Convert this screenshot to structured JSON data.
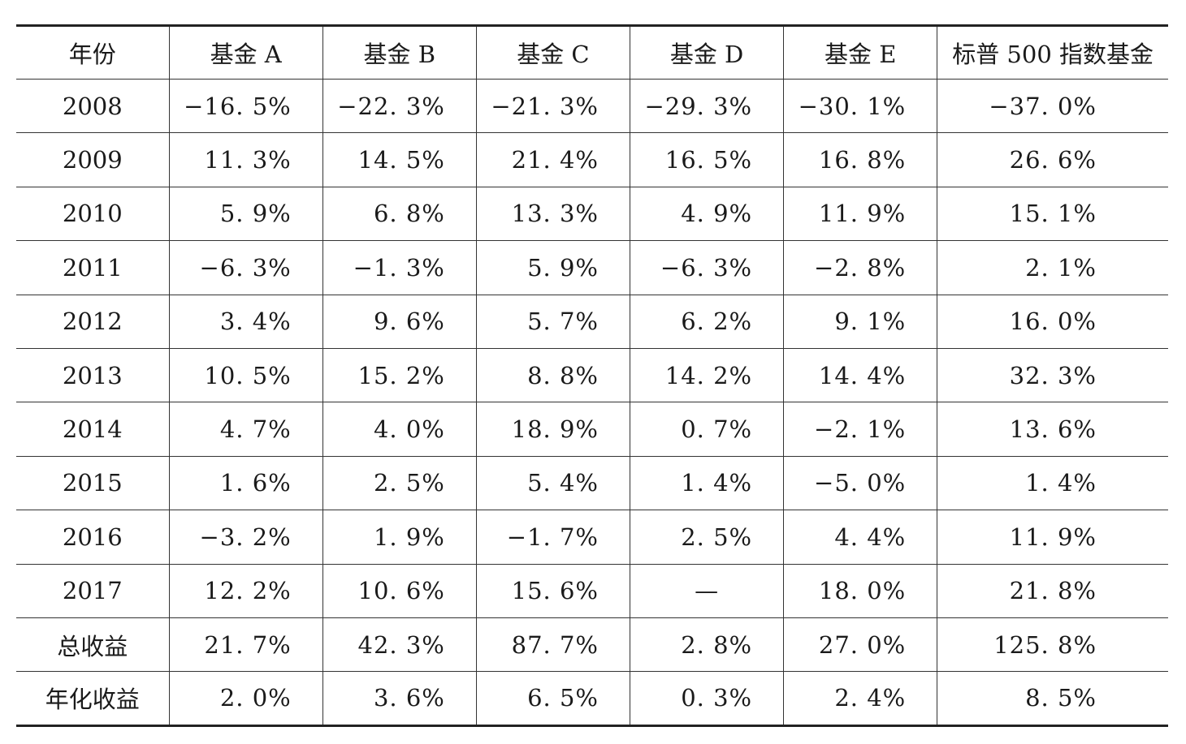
{
  "table": {
    "headers": [
      "年份",
      "基金 A",
      "基金 B",
      "基金 C",
      "基金 D",
      "基金 E",
      "标普 500 指数基金"
    ],
    "rows": [
      [
        "2008",
        "−16. 5%",
        "−22. 3%",
        "−21. 3%",
        "−29. 3%",
        "−30. 1%",
        "−37. 0%"
      ],
      [
        "2009",
        "11. 3%",
        "14. 5%",
        "21. 4%",
        "16. 5%",
        "16. 8%",
        "26. 6%"
      ],
      [
        "2010",
        "5. 9%",
        "6. 8%",
        "13. 3%",
        "4. 9%",
        "11. 9%",
        "15. 1%"
      ],
      [
        "2011",
        "−6. 3%",
        "−1. 3%",
        "5. 9%",
        "−6. 3%",
        "−2. 8%",
        "2. 1%"
      ],
      [
        "2012",
        "3. 4%",
        "9. 6%",
        "5. 7%",
        "6. 2%",
        "9. 1%",
        "16. 0%"
      ],
      [
        "2013",
        "10. 5%",
        "15. 2%",
        "8. 8%",
        "14. 2%",
        "14. 4%",
        "32. 3%"
      ],
      [
        "2014",
        "4. 7%",
        "4. 0%",
        "18. 9%",
        "0. 7%",
        "−2. 1%",
        "13. 6%"
      ],
      [
        "2015",
        "1. 6%",
        "2. 5%",
        "5. 4%",
        "1. 4%",
        "−5. 0%",
        "1. 4%"
      ],
      [
        "2016",
        "−3. 2%",
        "1. 9%",
        "−1. 7%",
        "2. 5%",
        "4. 4%",
        "11. 9%"
      ],
      [
        "2017",
        "12. 2%",
        "10. 6%",
        "15. 6%",
        "—",
        "18. 0%",
        "21. 8%"
      ],
      [
        "总收益",
        "21. 7%",
        "42. 3%",
        "87. 7%",
        "2. 8%",
        "27. 0%",
        "125. 8%"
      ],
      [
        "年化收益",
        "2. 0%",
        "3. 6%",
        "6. 5%",
        "0. 3%",
        "2. 4%",
        "8. 5%"
      ]
    ]
  }
}
